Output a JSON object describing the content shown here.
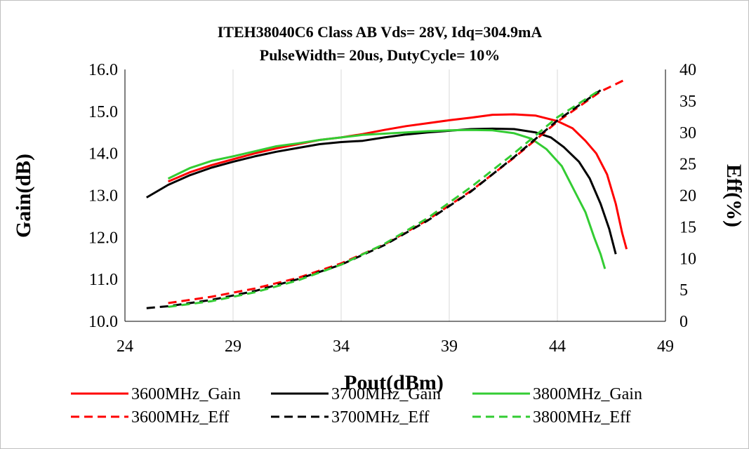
{
  "chart_data": {
    "type": "line",
    "title": "ITEH38040C6 Class AB Vds= 28V, Idq=304.9mA",
    "subtitle": "PulseWidth= 20us, DutyCycle= 10%",
    "xlabel": "Pout(dBm)",
    "ylabel": "Gain(dB)",
    "y2label": "Eff(%)",
    "xlim": [
      24,
      49
    ],
    "ylim": [
      10,
      16
    ],
    "y2lim": [
      0,
      40
    ],
    "x_ticks": [
      24,
      29,
      34,
      39,
      44,
      49
    ],
    "y_ticks": [
      "10.0",
      "11.0",
      "12.0",
      "13.0",
      "14.0",
      "15.0",
      "16.0"
    ],
    "y2_ticks": [
      0,
      5,
      10,
      15,
      20,
      25,
      30,
      35,
      40
    ],
    "grid": "vertical",
    "legend_position": "bottom",
    "series": [
      {
        "name": "3600MHz_Gain",
        "axis": "left",
        "color": "#ff0000",
        "dash": "solid",
        "points": [
          [
            26,
            13.33
          ],
          [
            27,
            13.55
          ],
          [
            28,
            13.72
          ],
          [
            29,
            13.86
          ],
          [
            30,
            14.0
          ],
          [
            31,
            14.12
          ],
          [
            32,
            14.22
          ],
          [
            33,
            14.32
          ],
          [
            34,
            14.38
          ],
          [
            35,
            14.46
          ],
          [
            36,
            14.56
          ],
          [
            37,
            14.65
          ],
          [
            38,
            14.72
          ],
          [
            39,
            14.79
          ],
          [
            40,
            14.85
          ],
          [
            41,
            14.92
          ],
          [
            42,
            14.93
          ],
          [
            43,
            14.9
          ],
          [
            44,
            14.77
          ],
          [
            44.7,
            14.6
          ],
          [
            45.3,
            14.3
          ],
          [
            45.8,
            14.0
          ],
          [
            46.3,
            13.5
          ],
          [
            46.7,
            12.8
          ],
          [
            47.0,
            12.1
          ],
          [
            47.2,
            11.72
          ]
        ]
      },
      {
        "name": "3700MHz_Gain",
        "axis": "left",
        "color": "#000000",
        "dash": "solid",
        "points": [
          [
            25,
            12.95
          ],
          [
            26,
            13.25
          ],
          [
            27,
            13.48
          ],
          [
            28,
            13.66
          ],
          [
            29,
            13.8
          ],
          [
            30,
            13.93
          ],
          [
            31,
            14.04
          ],
          [
            32,
            14.13
          ],
          [
            33,
            14.22
          ],
          [
            34,
            14.27
          ],
          [
            35,
            14.3
          ],
          [
            36,
            14.38
          ],
          [
            37,
            14.45
          ],
          [
            38,
            14.5
          ],
          [
            39,
            14.54
          ],
          [
            40,
            14.58
          ],
          [
            41,
            14.59
          ],
          [
            42,
            14.58
          ],
          [
            43,
            14.5
          ],
          [
            43.7,
            14.38
          ],
          [
            44.3,
            14.15
          ],
          [
            45.0,
            13.8
          ],
          [
            45.5,
            13.4
          ],
          [
            46.0,
            12.8
          ],
          [
            46.4,
            12.2
          ],
          [
            46.7,
            11.6
          ]
        ]
      },
      {
        "name": "3800MHz_Gain",
        "axis": "left",
        "color": "#33cc33",
        "dash": "solid",
        "points": [
          [
            26,
            13.4
          ],
          [
            27,
            13.65
          ],
          [
            28,
            13.82
          ],
          [
            29,
            13.93
          ],
          [
            30,
            14.05
          ],
          [
            31,
            14.17
          ],
          [
            32,
            14.24
          ],
          [
            33,
            14.32
          ],
          [
            34,
            14.38
          ],
          [
            35,
            14.44
          ],
          [
            36,
            14.47
          ],
          [
            37,
            14.5
          ],
          [
            38,
            14.53
          ],
          [
            39,
            14.55
          ],
          [
            40,
            14.56
          ],
          [
            41,
            14.55
          ],
          [
            42,
            14.48
          ],
          [
            42.8,
            14.35
          ],
          [
            43.5,
            14.1
          ],
          [
            44.2,
            13.7
          ],
          [
            44.8,
            13.1
          ],
          [
            45.3,
            12.6
          ],
          [
            45.7,
            12.0
          ],
          [
            46.0,
            11.6
          ],
          [
            46.2,
            11.25
          ]
        ]
      },
      {
        "name": "3600MHz_Eff",
        "axis": "right",
        "color": "#ff0000",
        "dash": "dashed",
        "points": [
          [
            26,
            2.9
          ],
          [
            28,
            3.9
          ],
          [
            30,
            5.2
          ],
          [
            32,
            6.9
          ],
          [
            34,
            9.2
          ],
          [
            36,
            12.2
          ],
          [
            38,
            16.1
          ],
          [
            40,
            20.7
          ],
          [
            42,
            26.0
          ],
          [
            44,
            31.7
          ],
          [
            46,
            36.5
          ],
          [
            47.2,
            38.5
          ]
        ]
      },
      {
        "name": "3700MHz_Eff",
        "axis": "right",
        "color": "#000000",
        "dash": "dashed",
        "points": [
          [
            25,
            2.1
          ],
          [
            26,
            2.4
          ],
          [
            28,
            3.4
          ],
          [
            30,
            4.8
          ],
          [
            32,
            6.7
          ],
          [
            34,
            9.0
          ],
          [
            36,
            12.1
          ],
          [
            38,
            16.0
          ],
          [
            40,
            20.6
          ],
          [
            42,
            26.1
          ],
          [
            44,
            31.9
          ],
          [
            46,
            36.7
          ]
        ]
      },
      {
        "name": "3800MHz_Eff",
        "axis": "right",
        "color": "#33cc33",
        "dash": "dashed",
        "points": [
          [
            26,
            2.3
          ],
          [
            28,
            3.2
          ],
          [
            30,
            4.6
          ],
          [
            32,
            6.5
          ],
          [
            34,
            9.0
          ],
          [
            36,
            12.3
          ],
          [
            38,
            16.4
          ],
          [
            40,
            21.3
          ],
          [
            42,
            26.7
          ],
          [
            44,
            32.4
          ],
          [
            46,
            36.8
          ]
        ]
      }
    ]
  }
}
